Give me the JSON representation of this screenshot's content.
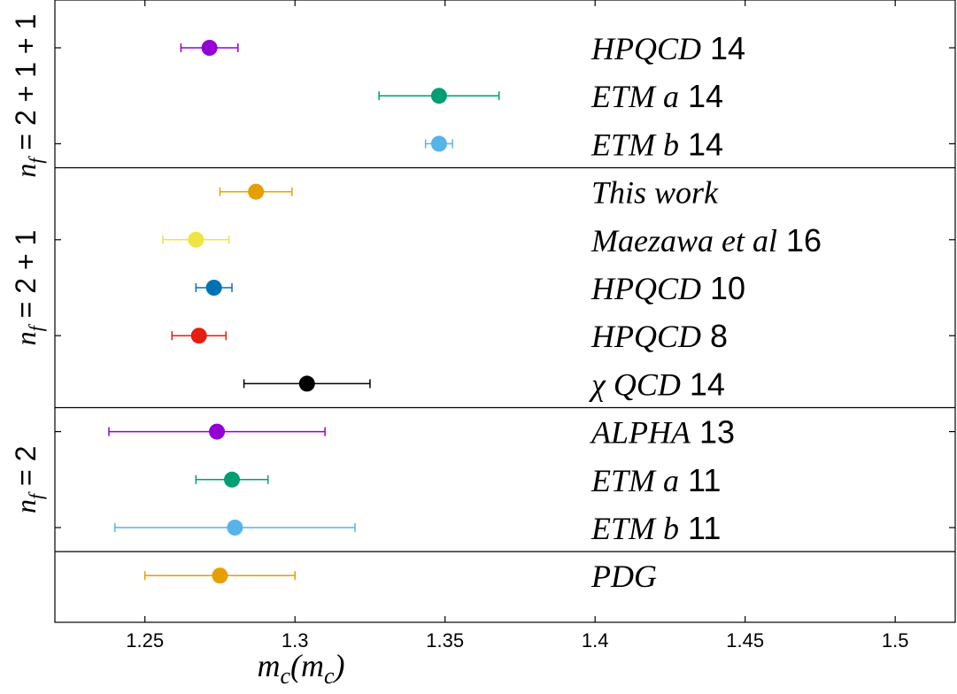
{
  "chart_data": {
    "type": "scatter",
    "xlabel": "m_c(m_c)",
    "xlim": [
      1.22,
      1.52
    ],
    "xticks": [
      "1.25",
      "1.3",
      "1.35",
      "1.4",
      "1.45",
      "1.5"
    ],
    "xtick_values": [
      1.25,
      1.3,
      1.35,
      1.4,
      1.45,
      1.5
    ],
    "groups": [
      {
        "label": "n_f = 2 + 1 + 1",
        "label_main": "n",
        "label_sub": "f",
        "label_rest": " = 2 + 1 + 1"
      },
      {
        "label": "n_f = 2 + 1",
        "label_main": "n",
        "label_sub": "f",
        "label_rest": " = 2 + 1"
      },
      {
        "label": "n_f = 2",
        "label_main": "n",
        "label_sub": "f",
        "label_rest": " = 2"
      },
      {
        "label": "",
        "label_main": "",
        "label_sub": "",
        "label_rest": ""
      }
    ],
    "points": [
      {
        "name": "HPQCD",
        "year": "14",
        "group": 0,
        "value": 1.2715,
        "err_lo": 0.0095,
        "err_hi": 0.0095,
        "color": "#9400d3"
      },
      {
        "name": "ETM a",
        "year": "14",
        "group": 0,
        "value": 1.348,
        "err_lo": 0.02,
        "err_hi": 0.02,
        "color": "#009e73"
      },
      {
        "name": "ETM b",
        "year": "14",
        "group": 0,
        "value": 1.348,
        "err_lo": 0.0045,
        "err_hi": 0.0045,
        "color": "#56b4e9"
      },
      {
        "name": "This work",
        "year": "",
        "group": 1,
        "value": 1.287,
        "err_lo": 0.012,
        "err_hi": 0.012,
        "color": "#e69f00"
      },
      {
        "name": "Maezawa et al",
        "year": "16",
        "group": 1,
        "value": 1.267,
        "err_lo": 0.011,
        "err_hi": 0.011,
        "color": "#f0e442"
      },
      {
        "name": "HPQCD",
        "year": "10",
        "group": 1,
        "value": 1.273,
        "err_lo": 0.006,
        "err_hi": 0.006,
        "color": "#0072b2"
      },
      {
        "name": "HPQCD",
        "year": "8",
        "group": 1,
        "value": 1.268,
        "err_lo": 0.009,
        "err_hi": 0.009,
        "color": "#e51e10"
      },
      {
        "name": "χ QCD",
        "year": "14",
        "group": 1,
        "value": 1.304,
        "err_lo": 0.021,
        "err_hi": 0.021,
        "color": "#000000"
      },
      {
        "name": "ALPHA",
        "year": "13",
        "group": 2,
        "value": 1.274,
        "err_lo": 0.036,
        "err_hi": 0.036,
        "color": "#9400d3"
      },
      {
        "name": "ETM a",
        "year": "11",
        "group": 2,
        "value": 1.279,
        "err_lo": 0.012,
        "err_hi": 0.012,
        "color": "#009e73"
      },
      {
        "name": "ETM b",
        "year": "11",
        "group": 2,
        "value": 1.28,
        "err_lo": 0.04,
        "err_hi": 0.04,
        "color": "#56b4e9"
      },
      {
        "name": "PDG",
        "year": "",
        "group": 3,
        "value": 1.275,
        "err_lo": 0.025,
        "err_hi": 0.025,
        "color": "#e69f00"
      }
    ]
  }
}
